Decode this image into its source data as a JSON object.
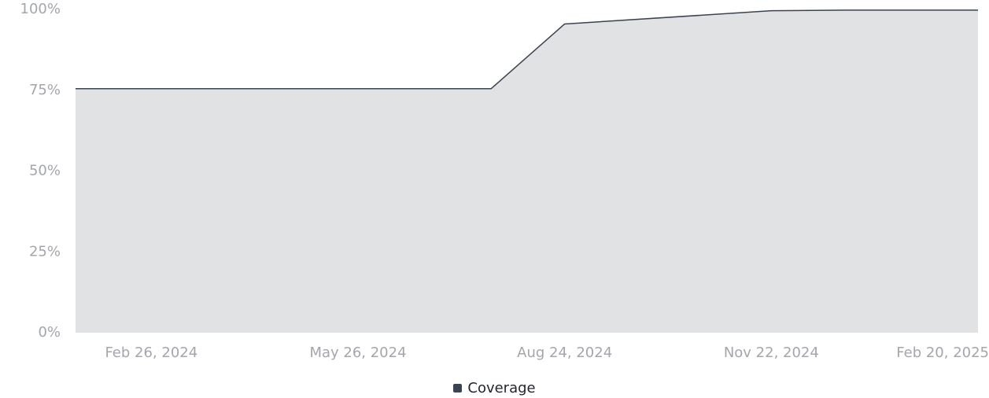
{
  "colors": {
    "line": "#3b4250",
    "area": "#e1e2e4",
    "grid": "#d4d5d8",
    "tick_text": "#a3a6ad",
    "legend_text": "#1f2430"
  },
  "chart_data": {
    "type": "area",
    "title": "",
    "xlabel": "",
    "ylabel": "",
    "ylim": [
      0,
      100
    ],
    "xlim": [
      "2024-01-24",
      "2025-02-20"
    ],
    "y_ticks": [
      0,
      25,
      50,
      75,
      100
    ],
    "y_tick_labels": [
      "0%",
      "25%",
      "50%",
      "75%",
      "100%"
    ],
    "x_ticks": [
      "2024-02-26",
      "2024-05-26",
      "2024-08-24",
      "2024-11-22",
      "2025-02-20"
    ],
    "x_tick_labels": [
      "Feb 26, 2024",
      "May 26, 2024",
      "Aug 24, 2024",
      "Nov 22, 2024",
      "Feb 20, 2025"
    ],
    "grid": true,
    "legend_position": "bottom-center",
    "series": [
      {
        "name": "Coverage",
        "color": "#3b4250",
        "fill": "#e1e2e4",
        "x": [
          "2024-01-24",
          "2024-07-23",
          "2024-08-24",
          "2024-11-22",
          "2024-12-24",
          "2025-02-20"
        ],
        "values": [
          75.5,
          75.5,
          95.5,
          99.6,
          99.8,
          99.8
        ]
      }
    ]
  },
  "legend": {
    "items": [
      {
        "label": "Coverage",
        "color": "#3b4250"
      }
    ]
  }
}
